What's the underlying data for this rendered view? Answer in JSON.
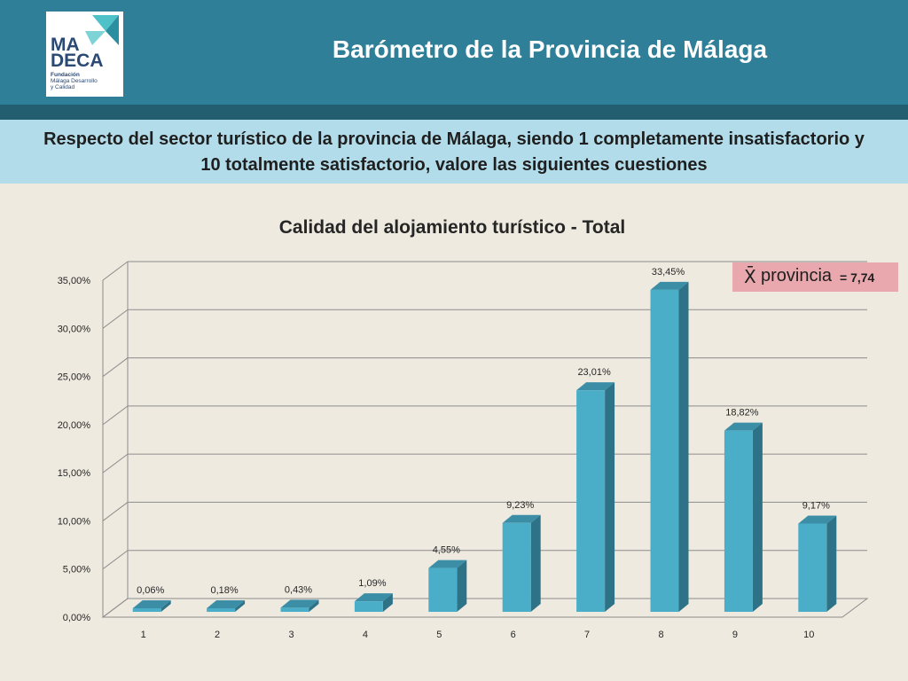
{
  "header": {
    "title": "Barómetro de la Provincia de Málaga",
    "logo": {
      "line1": "MA",
      "line2": "DECA",
      "sub1": "Fundación",
      "sub2": "Málaga Desarrollo",
      "sub3": "y Calidad"
    }
  },
  "question": "Respecto del sector turístico de la provincia de Málaga, siendo 1 completamente insatisfactorio y 10 totalmente satisfactorio, valore las siguientes cuestiones",
  "mean_badge": {
    "symbol": "X̄",
    "label": "provincia",
    "value": "= 7,74"
  },
  "colors": {
    "header": "#2f7f98",
    "header_stripe": "#235e70",
    "band": "#b2dce9",
    "bar_front": "#4aaec9",
    "bar_side": "#2e7287",
    "bar_top": "#3b8ea6",
    "badge": "#e8a8ae"
  },
  "chart_data": {
    "type": "bar",
    "title": "Calidad del alojamiento turístico - Total",
    "categories": [
      "1",
      "2",
      "3",
      "4",
      "5",
      "6",
      "7",
      "8",
      "9",
      "10"
    ],
    "values": [
      0.06,
      0.18,
      0.43,
      1.09,
      4.55,
      9.23,
      23.01,
      33.45,
      18.82,
      9.17
    ],
    "data_labels": [
      "0,06%",
      "0,18%",
      "0,43%",
      "1,09%",
      "4,55%",
      "9,23%",
      "23,01%",
      "33,45%",
      "18,82%",
      "9,17%"
    ],
    "y_ticks": [
      "0,00%",
      "5,00%",
      "10,00%",
      "15,00%",
      "20,00%",
      "25,00%",
      "30,00%",
      "35,00%"
    ],
    "ylim": [
      0,
      35
    ],
    "grid": true,
    "style": "3d"
  }
}
